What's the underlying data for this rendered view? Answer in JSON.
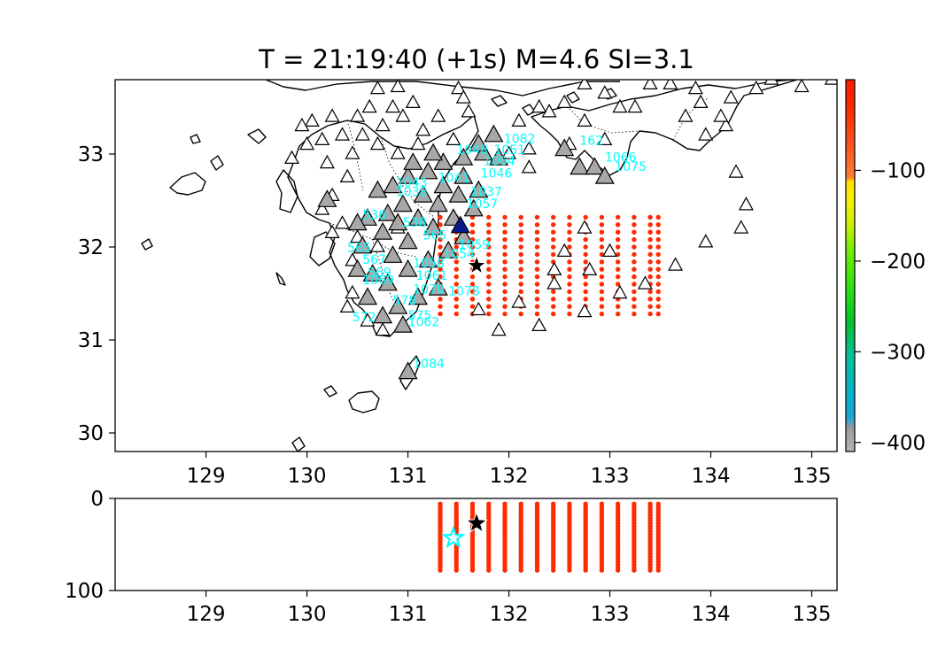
{
  "title": "T = 21:19:40 (+1s) M=4.6 SI=3.1",
  "colors": {
    "grid_point": "#ff2a00",
    "station_open": "#ffffff",
    "station_triggered": "#a8a8a8",
    "station_label": "#00ffff",
    "epicenter": "#000000",
    "hypocenter_est": "#00ffff",
    "highlight_station": "#0a1a8c"
  },
  "chart_data": [
    {
      "type": "scatter",
      "name": "map",
      "xlim": [
        128.1,
        135.25
      ],
      "ylim": [
        29.8,
        33.8
      ],
      "xticks": [
        "129",
        "130",
        "131",
        "132",
        "133",
        "134",
        "135"
      ],
      "yticks": [
        "30",
        "31",
        "32",
        "33"
      ],
      "grid_lon": [
        131.32,
        131.48,
        131.64,
        131.8,
        131.96,
        132.12,
        132.28,
        132.44,
        132.6,
        132.76,
        132.92,
        133.08,
        133.24,
        133.4,
        133.48
      ],
      "grid_lat": [
        31.28,
        31.36,
        31.44,
        31.52,
        31.6,
        31.68,
        31.76,
        31.84,
        31.92,
        32.0,
        32.08,
        32.16,
        32.24,
        32.32
      ],
      "epicenter": [
        131.68,
        31.8
      ],
      "stations_open": [
        [
          130.7,
          33.7
        ],
        [
          130.9,
          33.72
        ],
        [
          131.05,
          33.55
        ],
        [
          131.5,
          33.7
        ],
        [
          131.55,
          33.6
        ],
        [
          131.6,
          33.45
        ],
        [
          130.85,
          33.5
        ],
        [
          130.62,
          33.5
        ],
        [
          130.5,
          33.4
        ],
        [
          130.25,
          33.4
        ],
        [
          130.05,
          33.35
        ],
        [
          129.95,
          33.3
        ],
        [
          130.15,
          33.15
        ],
        [
          130.35,
          33.2
        ],
        [
          130.55,
          33.2
        ],
        [
          130.75,
          33.3
        ],
        [
          130.95,
          33.4
        ],
        [
          131.15,
          33.25
        ],
        [
          131.3,
          33.4
        ],
        [
          131.45,
          33.15
        ],
        [
          130.0,
          33.1
        ],
        [
          129.85,
          32.95
        ],
        [
          130.2,
          32.9
        ],
        [
          130.45,
          33.0
        ],
        [
          130.7,
          33.1
        ],
        [
          130.9,
          33.0
        ],
        [
          131.1,
          33.1
        ],
        [
          130.4,
          32.75
        ],
        [
          130.25,
          32.55
        ],
        [
          130.15,
          32.4
        ],
        [
          130.35,
          32.25
        ],
        [
          130.5,
          32.1
        ],
        [
          130.25,
          32.15
        ],
        [
          130.45,
          31.85
        ],
        [
          130.7,
          32.0
        ],
        [
          130.9,
          32.2
        ],
        [
          130.45,
          31.5
        ],
        [
          130.4,
          31.35
        ],
        [
          130.6,
          31.2
        ],
        [
          130.75,
          31.1
        ],
        [
          131.7,
          31.32
        ],
        [
          132.1,
          31.4
        ],
        [
          131.9,
          31.1
        ],
        [
          132.3,
          31.15
        ],
        [
          132.45,
          31.6
        ],
        [
          132.45,
          31.75
        ],
        [
          132.55,
          31.95
        ],
        [
          132.75,
          31.3
        ],
        [
          132.75,
          32.2
        ],
        [
          132.8,
          31.75
        ],
        [
          133.0,
          31.95
        ],
        [
          133.1,
          31.5
        ],
        [
          133.35,
          31.6
        ],
        [
          133.65,
          31.8
        ],
        [
          133.95,
          32.05
        ],
        [
          134.3,
          32.2
        ],
        [
          134.35,
          32.45
        ],
        [
          134.25,
          32.8
        ],
        [
          134.15,
          33.3
        ],
        [
          134.1,
          33.4
        ],
        [
          133.9,
          33.55
        ],
        [
          133.85,
          33.7
        ],
        [
          133.6,
          33.75
        ],
        [
          133.4,
          33.75
        ],
        [
          133.25,
          33.5
        ],
        [
          133.1,
          33.5
        ],
        [
          132.95,
          33.65
        ],
        [
          132.75,
          33.75
        ],
        [
          132.55,
          33.55
        ],
        [
          132.4,
          33.45
        ],
        [
          132.75,
          33.35
        ],
        [
          132.95,
          33.15
        ],
        [
          132.3,
          33.5
        ],
        [
          132.1,
          33.35
        ],
        [
          132.2,
          33.05
        ],
        [
          132.6,
          33.1
        ],
        [
          134.45,
          33.7
        ],
        [
          134.6,
          33.8
        ],
        [
          134.9,
          33.72
        ],
        [
          135.2,
          33.8
        ],
        [
          134.2,
          33.6
        ],
        [
          133.95,
          33.2
        ],
        [
          133.75,
          33.4
        ],
        [
          132.2,
          32.85
        ],
        [
          132.0,
          33.0
        ]
      ],
      "stations_triggered": [
        [
          130.7,
          32.6
        ],
        [
          130.85,
          32.65
        ],
        [
          131.0,
          32.75
        ],
        [
          131.2,
          32.8
        ],
        [
          131.35,
          32.9
        ],
        [
          131.55,
          32.95
        ],
        [
          131.75,
          33.0
        ],
        [
          131.9,
          32.95
        ],
        [
          131.55,
          32.75
        ],
        [
          131.35,
          32.65
        ],
        [
          131.15,
          32.55
        ],
        [
          130.95,
          32.45
        ],
        [
          130.8,
          32.35
        ],
        [
          130.6,
          32.3
        ],
        [
          130.75,
          32.15
        ],
        [
          130.9,
          32.25
        ],
        [
          131.1,
          32.3
        ],
        [
          131.3,
          32.45
        ],
        [
          131.5,
          32.55
        ],
        [
          131.7,
          32.6
        ],
        [
          131.65,
          32.4
        ],
        [
          131.45,
          32.3
        ],
        [
          131.25,
          32.2
        ],
        [
          131.0,
          32.05
        ],
        [
          130.85,
          31.9
        ],
        [
          130.55,
          32.0
        ],
        [
          130.5,
          31.75
        ],
        [
          130.65,
          31.7
        ],
        [
          130.8,
          31.6
        ],
        [
          131.0,
          31.75
        ],
        [
          131.2,
          31.85
        ],
        [
          131.4,
          31.95
        ],
        [
          131.55,
          32.1
        ],
        [
          131.3,
          31.55
        ],
        [
          131.1,
          31.45
        ],
        [
          130.9,
          31.35
        ],
        [
          130.75,
          31.25
        ],
        [
          130.95,
          31.15
        ],
        [
          131.0,
          30.65
        ],
        [
          130.6,
          31.45
        ],
        [
          132.55,
          33.05
        ],
        [
          132.7,
          32.85
        ],
        [
          132.85,
          32.85
        ],
        [
          132.95,
          32.75
        ],
        [
          131.85,
          33.2
        ],
        [
          131.7,
          33.1
        ],
        [
          131.25,
          33.0
        ],
        [
          131.05,
          32.9
        ],
        [
          130.2,
          32.5
        ],
        [
          130.5,
          32.25
        ]
      ],
      "highlight_station": [
        131.52,
        32.22
      ],
      "station_labels": [
        {
          "text": "1082",
          "pos": [
            131.95,
            33.12
          ]
        },
        {
          "text": "1051",
          "pos": [
            131.85,
            33.0
          ]
        },
        {
          "text": "162",
          "pos": [
            132.7,
            33.1
          ]
        },
        {
          "text": "1066",
          "pos": [
            132.95,
            32.92
          ]
        },
        {
          "text": "1075",
          "pos": [
            133.05,
            32.82
          ]
        },
        {
          "text": "1048",
          "pos": [
            131.48,
            33.0
          ]
        },
        {
          "text": "1064",
          "pos": [
            131.75,
            32.88
          ]
        },
        {
          "text": "1037",
          "pos": [
            131.62,
            32.55
          ]
        },
        {
          "text": "1046",
          "pos": [
            131.72,
            32.75
          ]
        },
        {
          "text": "1041",
          "pos": [
            131.3,
            32.7
          ]
        },
        {
          "text": "1043",
          "pos": [
            130.88,
            32.65
          ]
        },
        {
          "text": "1038",
          "pos": [
            130.88,
            32.55
          ]
        },
        {
          "text": "1057",
          "pos": [
            131.58,
            32.42
          ]
        },
        {
          "text": "536",
          "pos": [
            130.55,
            32.3
          ]
        },
        {
          "text": "538",
          "pos": [
            130.95,
            32.22
          ]
        },
        {
          "text": "565",
          "pos": [
            131.15,
            32.08
          ]
        },
        {
          "text": "1059",
          "pos": [
            131.5,
            31.98
          ]
        },
        {
          "text": "1054",
          "pos": [
            131.35,
            31.88
          ]
        },
        {
          "text": "1058",
          "pos": [
            131.05,
            31.78
          ]
        },
        {
          "text": "565",
          "pos": [
            130.4,
            31.95
          ]
        },
        {
          "text": "567",
          "pos": [
            130.55,
            31.82
          ]
        },
        {
          "text": "1061",
          "pos": [
            131.08,
            31.65
          ]
        },
        {
          "text": "569",
          "pos": [
            130.6,
            31.68
          ]
        },
        {
          "text": "1069",
          "pos": [
            130.55,
            31.6
          ]
        },
        {
          "text": "1070",
          "pos": [
            131.05,
            31.5
          ]
        },
        {
          "text": "1078",
          "pos": [
            131.4,
            31.48
          ]
        },
        {
          "text": "578",
          "pos": [
            130.85,
            31.38
          ]
        },
        {
          "text": "575",
          "pos": [
            131.0,
            31.22
          ]
        },
        {
          "text": "572",
          "pos": [
            130.45,
            31.2
          ]
        },
        {
          "text": "1062",
          "pos": [
            131.0,
            31.15
          ]
        },
        {
          "text": "1084",
          "pos": [
            131.05,
            30.7
          ]
        }
      ]
    },
    {
      "type": "scatter",
      "name": "depth",
      "xlim": [
        128.1,
        135.25
      ],
      "ylim": [
        0,
        100
      ],
      "xticks": [
        "129",
        "130",
        "131",
        "132",
        "133",
        "134",
        "135"
      ],
      "yticks": [
        "0",
        "100"
      ],
      "depth_range": [
        6,
        78
      ],
      "epicenter": [
        131.68,
        27
      ],
      "hypocenter_est": [
        131.45,
        43
      ]
    },
    {
      "type": "heatmap",
      "name": "colorbar",
      "range": [
        -410,
        0
      ],
      "ticks": [
        "−100",
        "−200",
        "−300",
        "−400"
      ],
      "tick_values": [
        -100,
        -200,
        -300,
        -400
      ],
      "stops": [
        {
          "v": -410,
          "c": "#b5b5b5"
        },
        {
          "v": -385,
          "c": "#9c9c9c"
        },
        {
          "v": -372,
          "c": "#19a6d8"
        },
        {
          "v": -340,
          "c": "#00b5c8"
        },
        {
          "v": -305,
          "c": "#00c0a0"
        },
        {
          "v": -270,
          "c": "#00c030"
        },
        {
          "v": -235,
          "c": "#22e010"
        },
        {
          "v": -190,
          "c": "#70ee00"
        },
        {
          "v": -155,
          "c": "#d8f000"
        },
        {
          "v": -130,
          "c": "#f8f000"
        },
        {
          "v": -112,
          "c": "#ffe000"
        },
        {
          "v": -108,
          "c": "#ff8030"
        },
        {
          "v": -70,
          "c": "#ff5020"
        },
        {
          "v": -30,
          "c": "#ff2a00"
        },
        {
          "v": 0,
          "c": "#ff1a00"
        }
      ]
    }
  ]
}
